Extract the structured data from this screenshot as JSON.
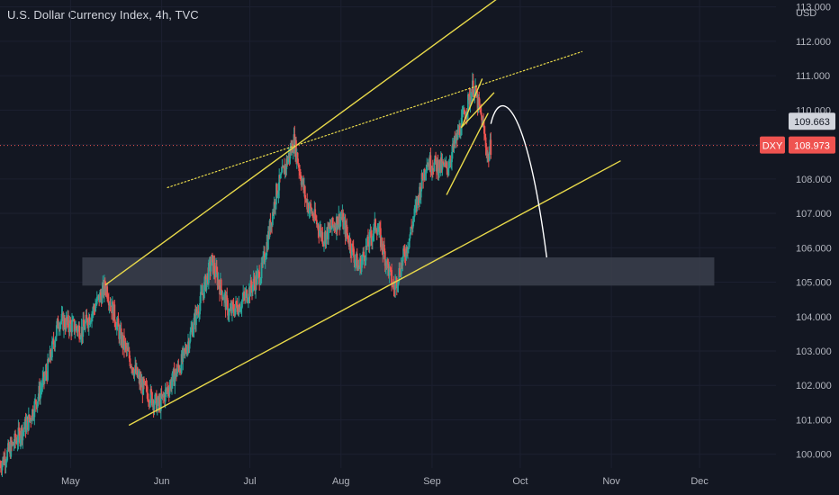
{
  "header": {
    "title": "U.S. Dollar Currency Index, 4h, TVC",
    "currency": "USD"
  },
  "colors": {
    "background": "#131722",
    "up": "#26a69a",
    "down": "#ef5350",
    "trendline": "#e8d94a",
    "zone": "#3b3f4c",
    "projection": "#ffffff",
    "price_line": "#ef5350",
    "label_gray": "#b2b5be"
  },
  "chart_data": {
    "type": "candlestick",
    "symbol": "DXY",
    "interval": "4h",
    "y_axis": {
      "min": 99.6,
      "max": 113.2,
      "ticks": [
        100,
        101,
        102,
        103,
        104,
        105,
        106,
        107,
        108,
        109,
        110,
        111,
        112,
        113
      ],
      "tick_labels": [
        "100.000",
        "101.000",
        "102.000",
        "103.000",
        "104.000",
        "105.000",
        "106.000",
        "107.000",
        "108.000",
        "109.000",
        "110.000",
        "111.000",
        "112.000",
        "113.000"
      ]
    },
    "x_axis": {
      "labels": [
        "May",
        "Jun",
        "Jul",
        "Aug",
        "Sep",
        "Oct",
        "Nov",
        "Dec"
      ],
      "label_days": [
        0,
        31,
        61,
        92,
        123,
        153,
        184,
        214
      ],
      "range_days": [
        -24,
        240
      ]
    },
    "price_path": [
      {
        "d": -24,
        "v": 99.7
      },
      {
        "d": -14,
        "v": 101.0
      },
      {
        "d": -8,
        "v": 102.4
      },
      {
        "d": -4,
        "v": 103.9
      },
      {
        "d": 4,
        "v": 103.6
      },
      {
        "d": 12,
        "v": 104.9
      },
      {
        "d": 17,
        "v": 103.4
      },
      {
        "d": 24,
        "v": 102.0
      },
      {
        "d": 30,
        "v": 101.4
      },
      {
        "d": 38,
        "v": 102.7
      },
      {
        "d": 44,
        "v": 104.4
      },
      {
        "d": 48,
        "v": 105.6
      },
      {
        "d": 54,
        "v": 104.1
      },
      {
        "d": 58,
        "v": 104.4
      },
      {
        "d": 65,
        "v": 105.3
      },
      {
        "d": 70,
        "v": 107.6
      },
      {
        "d": 76,
        "v": 109.1
      },
      {
        "d": 80,
        "v": 107.4
      },
      {
        "d": 86,
        "v": 106.3
      },
      {
        "d": 92,
        "v": 106.9
      },
      {
        "d": 98,
        "v": 105.4
      },
      {
        "d": 104,
        "v": 106.7
      },
      {
        "d": 110,
        "v": 104.8
      },
      {
        "d": 115,
        "v": 106.2
      },
      {
        "d": 121,
        "v": 108.5
      },
      {
        "d": 128,
        "v": 108.3
      },
      {
        "d": 133,
        "v": 109.6
      },
      {
        "d": 137,
        "v": 110.7
      },
      {
        "d": 140,
        "v": 109.7
      },
      {
        "d": 142,
        "v": 108.6
      },
      {
        "d": 143,
        "v": 108.97
      }
    ],
    "last_price": "108.973",
    "last_price_label": "DXY",
    "marked_price": "109.663",
    "annotations": {
      "support_zone": {
        "d_start": 4,
        "d_end": 219,
        "low": 104.9,
        "high": 105.72
      },
      "trendlines": [
        {
          "name": "upper-channel",
          "style": "solid",
          "from": {
            "d": 12,
            "v": 104.93
          },
          "to": {
            "d": 151,
            "v": 113.6
          }
        },
        {
          "name": "lower-channel",
          "style": "solid",
          "from": {
            "d": 20,
            "v": 100.85
          },
          "to": {
            "d": 187,
            "v": 108.52
          }
        },
        {
          "name": "dotted-resistance",
          "style": "dotted",
          "from": {
            "d": 33,
            "v": 107.75
          },
          "to": {
            "d": 174,
            "v": 111.7
          }
        },
        {
          "name": "flag-upper",
          "style": "solid",
          "from": {
            "d": 133,
            "v": 109.5
          },
          "to": {
            "d": 144,
            "v": 110.5
          }
        },
        {
          "name": "flag-lower",
          "style": "solid",
          "from": {
            "d": 128,
            "v": 107.55
          },
          "to": {
            "d": 142,
            "v": 109.9
          }
        },
        {
          "name": "flag-left",
          "style": "solid",
          "from": {
            "d": 133,
            "v": 109.5
          },
          "to": {
            "d": 140,
            "v": 110.9
          }
        }
      ],
      "projection": {
        "style": "curve",
        "points": [
          {
            "d": 143,
            "v": 109.6
          },
          {
            "d": 146,
            "v": 110.5
          },
          {
            "d": 155,
            "v": 109.3
          },
          {
            "d": 162,
            "v": 105.72
          }
        ]
      }
    }
  }
}
